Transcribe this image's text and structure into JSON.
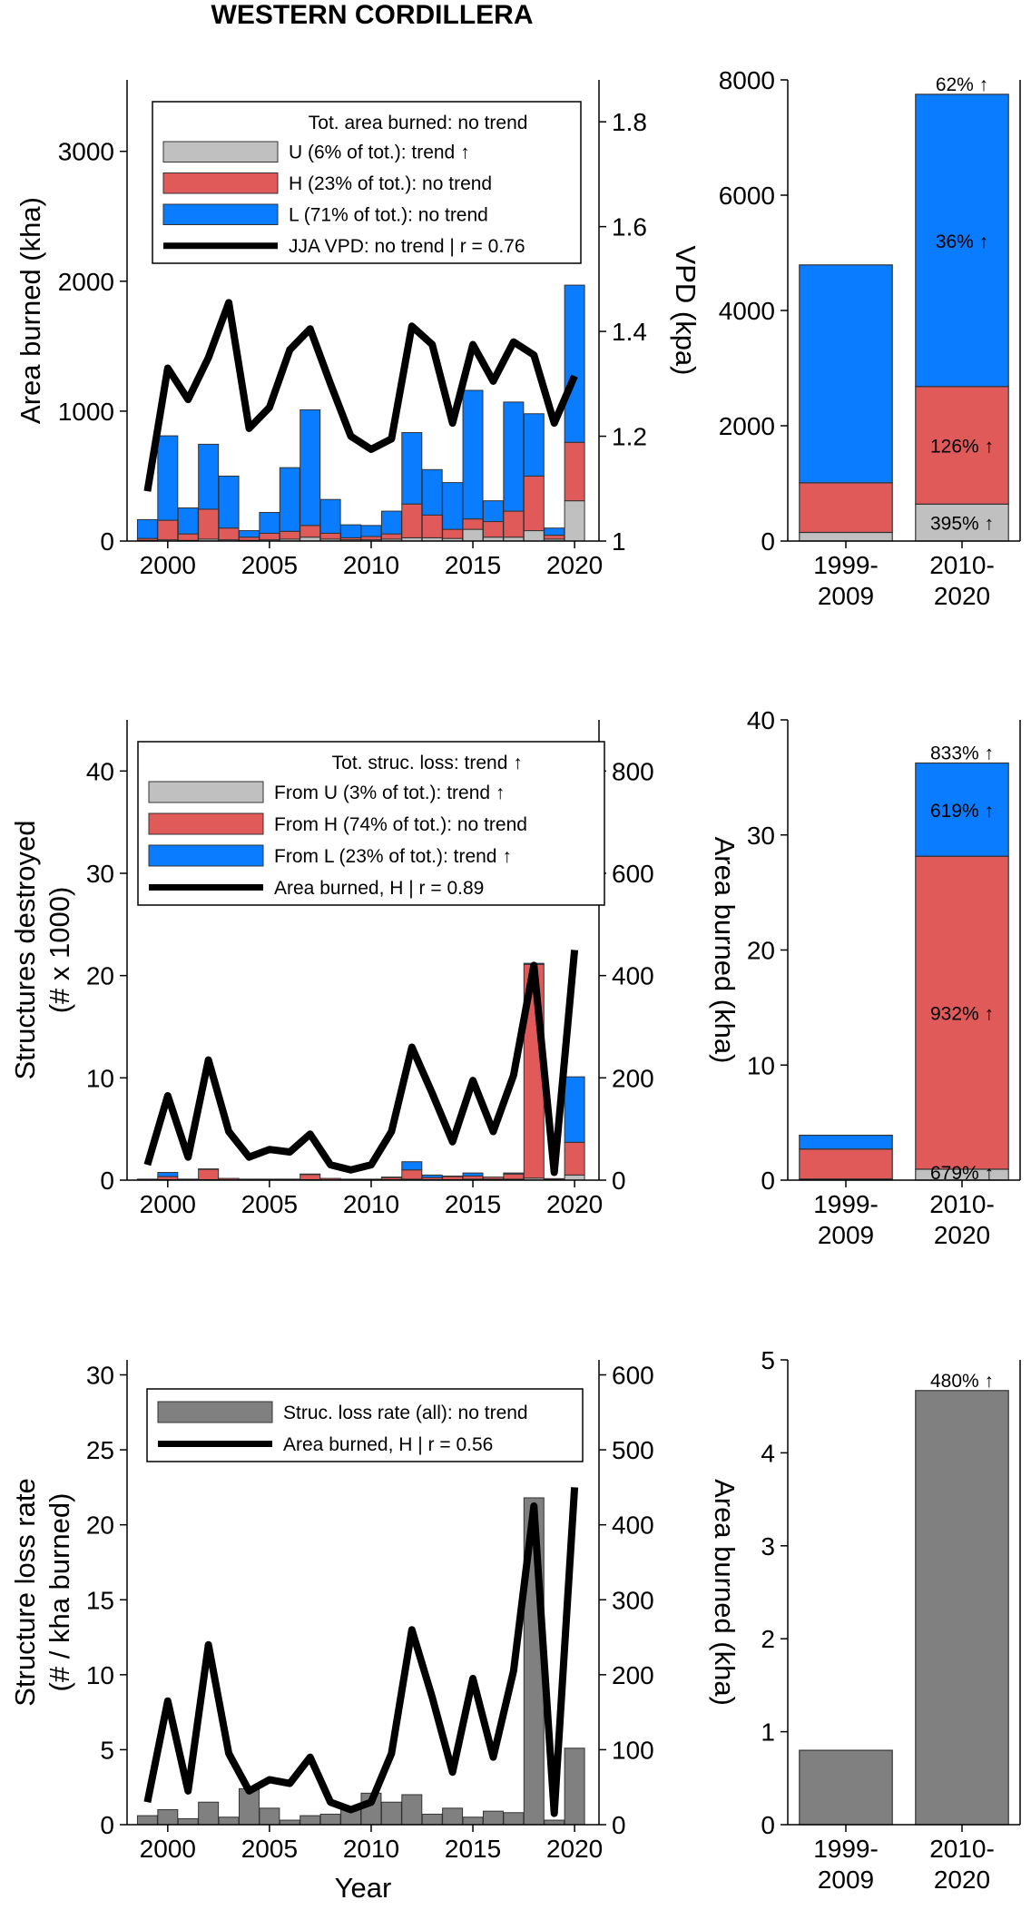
{
  "figure_title": "WESTERN CORDILLERA",
  "colors": {
    "U": "#c0c0c0",
    "H": "#e05a5a",
    "L": "#0a7cff",
    "rate": "#808080",
    "line": "#000000",
    "edge": "#333333"
  },
  "chart_data": [
    {
      "type": "bar",
      "stacked": true,
      "title": "",
      "xlabel": "",
      "ylabel": "Area burned (kha)",
      "y2label": "VPD (kpa)",
      "xlim": [
        1998,
        2021.2
      ],
      "ylim": [
        0,
        3550
      ],
      "y2lim": [
        1.0,
        1.88
      ],
      "xticks": [
        "2000",
        "2005",
        "2010",
        "2015",
        "2020"
      ],
      "yticks": [
        "0",
        "1000",
        "2000",
        "3000"
      ],
      "y2ticks": [
        "1",
        "1.2",
        "1.4",
        "1.6",
        "1.8"
      ],
      "x": [
        1999,
        2000,
        2001,
        2002,
        2003,
        2004,
        2005,
        2006,
        2007,
        2008,
        2009,
        2010,
        2011,
        2012,
        2013,
        2014,
        2015,
        2016,
        2017,
        2018,
        2019,
        2020
      ],
      "series": [
        {
          "name": "U (6% of tot.): trend ↑",
          "key": "U",
          "values": [
            5,
            10,
            5,
            15,
            10,
            5,
            10,
            15,
            30,
            15,
            10,
            10,
            15,
            25,
            25,
            20,
            90,
            30,
            30,
            80,
            15,
            310
          ]
        },
        {
          "name": "H (23% of tot.): no trend",
          "key": "H",
          "values": [
            15,
            150,
            50,
            230,
            90,
            25,
            50,
            60,
            90,
            45,
            15,
            25,
            40,
            260,
            175,
            70,
            80,
            120,
            200,
            420,
            30,
            450
          ]
        },
        {
          "name": "L (71% of tot.): no trend",
          "key": "L",
          "values": [
            145,
            650,
            200,
            500,
            400,
            50,
            160,
            490,
            890,
            260,
            100,
            85,
            175,
            550,
            350,
            360,
            990,
            160,
            840,
            480,
            55,
            1210
          ]
        }
      ],
      "line": {
        "name": "JJA VPD: no trend | r = 0.76",
        "values": [
          1.095,
          1.33,
          1.27,
          1.35,
          1.455,
          1.215,
          1.255,
          1.365,
          1.405,
          1.3,
          1.2,
          1.175,
          1.195,
          1.41,
          1.375,
          1.225,
          1.375,
          1.305,
          1.38,
          1.355,
          1.225,
          1.315
        ]
      },
      "legend_header": "Tot. area burned: no trend",
      "legend_position": "top-left"
    },
    {
      "type": "bar",
      "stacked": true,
      "title": "",
      "xlabel": "",
      "ylabel": "",
      "ylim": [
        0,
        8000
      ],
      "yticks": [
        "0",
        "2000",
        "4000",
        "6000",
        "8000"
      ],
      "categories": [
        "1999-\n2009",
        "2010-\n2020"
      ],
      "series": [
        {
          "key": "U",
          "values": [
            150,
            640
          ]
        },
        {
          "key": "H",
          "values": [
            860,
            2040
          ]
        },
        {
          "key": "L",
          "values": [
            3780,
            5070
          ]
        }
      ],
      "annotations": [
        {
          "segment": "U",
          "category": 1,
          "text": "395% ↑"
        },
        {
          "segment": "H",
          "category": 1,
          "text": "126% ↑"
        },
        {
          "segment": "L",
          "category": 1,
          "text": "36% ↑"
        },
        {
          "segment": "top",
          "category": 1,
          "text": "62% ↑"
        }
      ]
    },
    {
      "type": "bar",
      "stacked": true,
      "title": "",
      "xlabel": "",
      "ylabel": "Structures destroyed\n(# x 1000)",
      "y2label": "Area burned (kha)",
      "xlim": [
        1998,
        2021.2
      ],
      "ylim": [
        0,
        45
      ],
      "y2lim": [
        0,
        900
      ],
      "xticks": [
        "2000",
        "2005",
        "2010",
        "2015",
        "2020"
      ],
      "yticks": [
        "0",
        "10",
        "20",
        "30",
        "40"
      ],
      "y2ticks": [
        "0",
        "200",
        "400",
        "600",
        "800"
      ],
      "x": [
        1999,
        2000,
        2001,
        2002,
        2003,
        2004,
        2005,
        2006,
        2007,
        2008,
        2009,
        2010,
        2011,
        2012,
        2013,
        2014,
        2015,
        2016,
        2017,
        2018,
        2019,
        2020
      ],
      "series": [
        {
          "name": "From U (3% of tot.): trend ↑",
          "key": "U",
          "values": [
            0.02,
            0.05,
            0.02,
            0.05,
            0.02,
            0.02,
            0.02,
            0.02,
            0.05,
            0.02,
            0.02,
            0.02,
            0.05,
            0.1,
            0.05,
            0.05,
            0.1,
            0.1,
            0.1,
            0.2,
            0.05,
            0.5
          ]
        },
        {
          "name": "From H (74% of tot.): no trend",
          "key": "H",
          "values": [
            0.08,
            0.3,
            0.08,
            1.0,
            0.15,
            0.08,
            0.08,
            0.08,
            0.5,
            0.15,
            0.08,
            0.08,
            0.2,
            0.9,
            0.2,
            0.3,
            0.3,
            0.2,
            0.5,
            20.9,
            0.1,
            3.2
          ]
        },
        {
          "name": "From L (23% of tot.): trend ↑",
          "key": "L",
          "values": [
            0.0,
            0.4,
            0.0,
            0.05,
            0.0,
            0.0,
            0.0,
            0.0,
            0.05,
            0.0,
            0.0,
            0.0,
            0.05,
            0.8,
            0.25,
            0.05,
            0.3,
            0.0,
            0.1,
            0.1,
            0.0,
            6.4
          ]
        }
      ],
      "line": {
        "name": "Area burned, H | r = 0.89",
        "values": [
          30,
          165,
          45,
          235,
          95,
          45,
          60,
          55,
          90,
          30,
          20,
          30,
          95,
          260,
          170,
          75,
          195,
          95,
          205,
          420,
          15,
          450
        ]
      },
      "legend_header": "Tot. struc. loss: trend ↑",
      "legend_position": "top-left"
    },
    {
      "type": "bar",
      "stacked": true,
      "title": "",
      "xlabel": "",
      "ylabel": "",
      "ylim": [
        0,
        40
      ],
      "yticks": [
        "0",
        "10",
        "20",
        "30",
        "40"
      ],
      "categories": [
        "1999-\n2009",
        "2010-\n2020"
      ],
      "series": [
        {
          "key": "U",
          "values": [
            0.1,
            0.95
          ]
        },
        {
          "key": "H",
          "values": [
            2.6,
            27.2
          ]
        },
        {
          "key": "L",
          "values": [
            1.2,
            8.1
          ]
        }
      ],
      "annotations": [
        {
          "segment": "U",
          "category": 1,
          "text": "679% ↑"
        },
        {
          "segment": "H",
          "category": 1,
          "text": "932% ↑"
        },
        {
          "segment": "L",
          "category": 1,
          "text": "619% ↑"
        },
        {
          "segment": "top",
          "category": 1,
          "text": "833% ↑"
        }
      ]
    },
    {
      "type": "bar",
      "stacked": false,
      "title": "",
      "xlabel": "Year",
      "ylabel": "Structure loss rate\n(# / kha burned)",
      "y2label": "Area burned (kha)",
      "xlim": [
        1998,
        2021.2
      ],
      "ylim": [
        0,
        31
      ],
      "y2lim": [
        0,
        620
      ],
      "xticks": [
        "2000",
        "2005",
        "2010",
        "2015",
        "2020"
      ],
      "yticks": [
        "0",
        "5",
        "10",
        "15",
        "20",
        "25",
        "30"
      ],
      "y2ticks": [
        "0",
        "100",
        "200",
        "300",
        "400",
        "500",
        "600"
      ],
      "x": [
        1999,
        2000,
        2001,
        2002,
        2003,
        2004,
        2005,
        2006,
        2007,
        2008,
        2009,
        2010,
        2011,
        2012,
        2013,
        2014,
        2015,
        2016,
        2017,
        2018,
        2019,
        2020
      ],
      "series": [
        {
          "name": "Struc. loss rate (all): no trend",
          "key": "rate",
          "values": [
            0.6,
            1.0,
            0.4,
            1.5,
            0.5,
            2.4,
            1.1,
            0.3,
            0.6,
            0.7,
            1.0,
            2.1,
            1.5,
            2.0,
            0.7,
            1.1,
            0.5,
            0.9,
            0.8,
            21.8,
            0.3,
            5.1
          ]
        }
      ],
      "line": {
        "name": "Area burned, H | r = 0.56",
        "values": [
          30,
          165,
          45,
          240,
          95,
          45,
          60,
          55,
          90,
          30,
          20,
          30,
          95,
          260,
          170,
          70,
          195,
          90,
          205,
          425,
          15,
          450
        ]
      },
      "legend_position": "top-left"
    },
    {
      "type": "bar",
      "stacked": false,
      "title": "",
      "xlabel": "",
      "ylabel": "",
      "ylim": [
        0,
        5
      ],
      "yticks": [
        "0",
        "1",
        "2",
        "3",
        "4",
        "5"
      ],
      "categories": [
        "1999-\n2009",
        "2010-\n2020"
      ],
      "series": [
        {
          "key": "rate",
          "values": [
            0.8,
            4.67
          ]
        }
      ],
      "annotations": [
        {
          "segment": "top",
          "category": 1,
          "text": "480% ↑"
        }
      ]
    }
  ]
}
